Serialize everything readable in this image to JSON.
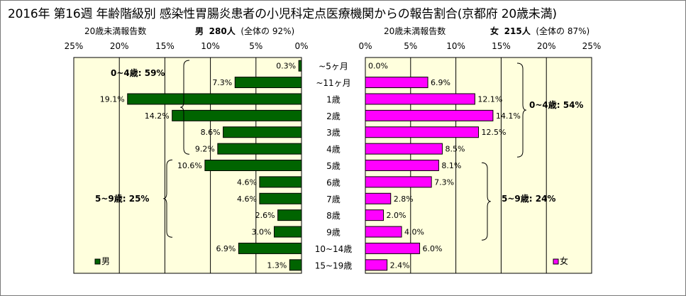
{
  "title": "2016年 第16週 年齢階級別 感染性胃腸炎患者の小児科定点医療機関からの報告割合(京都府 20歳未満)",
  "male_header": {
    "axis_title": "20歳未満報告数",
    "sex": "男",
    "count": "280人",
    "share": "(全体の 92%)"
  },
  "female_header": {
    "axis_title": "20歳未満報告数",
    "sex": "女",
    "count": "215人",
    "share": "(全体の 87%)"
  },
  "chart_data": [
    {
      "type": "bar",
      "orientation": "horizontal",
      "direction": "right-to-left",
      "categories": [
        "~5ヶ月",
        "~11ヶ月",
        "1歳",
        "2歳",
        "3歳",
        "4歳",
        "5歳",
        "6歳",
        "7歳",
        "8歳",
        "9歳",
        "10~14歳",
        "15~19歳"
      ],
      "series": [
        {
          "name": "男",
          "values": [
            0.3,
            7.3,
            19.1,
            14.2,
            8.6,
            9.2,
            10.6,
            4.6,
            4.6,
            2.6,
            3.0,
            6.9,
            1.3
          ],
          "color": "#006400"
        }
      ],
      "data_labels": [
        "0.3%",
        "7.3%",
        "19.1%",
        "14.2%",
        "8.6%",
        "9.2%",
        "10.6%",
        "4.6%",
        "4.6%",
        "2.6%",
        "3.0%",
        "6.9%",
        "1.3%"
      ],
      "xlim": [
        0,
        25
      ],
      "x_ticks": [
        "0%",
        "5%",
        "10%",
        "15%",
        "20%",
        "25%"
      ],
      "grid": true,
      "background": "#ffffdd",
      "legend": {
        "label": "男",
        "placement": "bottom-left"
      },
      "annotations": [
        "0~4歳: 59%",
        "5~9歳: 25%"
      ]
    },
    {
      "type": "bar",
      "orientation": "horizontal",
      "direction": "left-to-right",
      "categories": [
        "~5ヶ月",
        "~11ヶ月",
        "1歳",
        "2歳",
        "3歳",
        "4歳",
        "5歳",
        "6歳",
        "7歳",
        "8歳",
        "9歳",
        "10~14歳",
        "15~19歳"
      ],
      "series": [
        {
          "name": "女",
          "values": [
            0.0,
            6.9,
            12.1,
            14.1,
            12.5,
            8.5,
            8.1,
            7.3,
            2.8,
            2.0,
            4.0,
            6.0,
            2.4
          ],
          "color": "#ff00ff"
        }
      ],
      "data_labels": [
        "0.0%",
        "6.9%",
        "12.1%",
        "14.1%",
        "12.5%",
        "8.5%",
        "8.1%",
        "7.3%",
        "2.8%",
        "2.0%",
        "4.0%",
        "6.0%",
        "2.4%"
      ],
      "xlim": [
        0,
        25
      ],
      "x_ticks": [
        "0%",
        "5%",
        "10%",
        "15%",
        "20%",
        "25%"
      ],
      "grid": true,
      "background": "#ffffdd",
      "legend": {
        "label": "女",
        "placement": "bottom-right"
      },
      "annotations": [
        "0~4歳: 54%",
        "5~9歳: 24%"
      ]
    }
  ]
}
